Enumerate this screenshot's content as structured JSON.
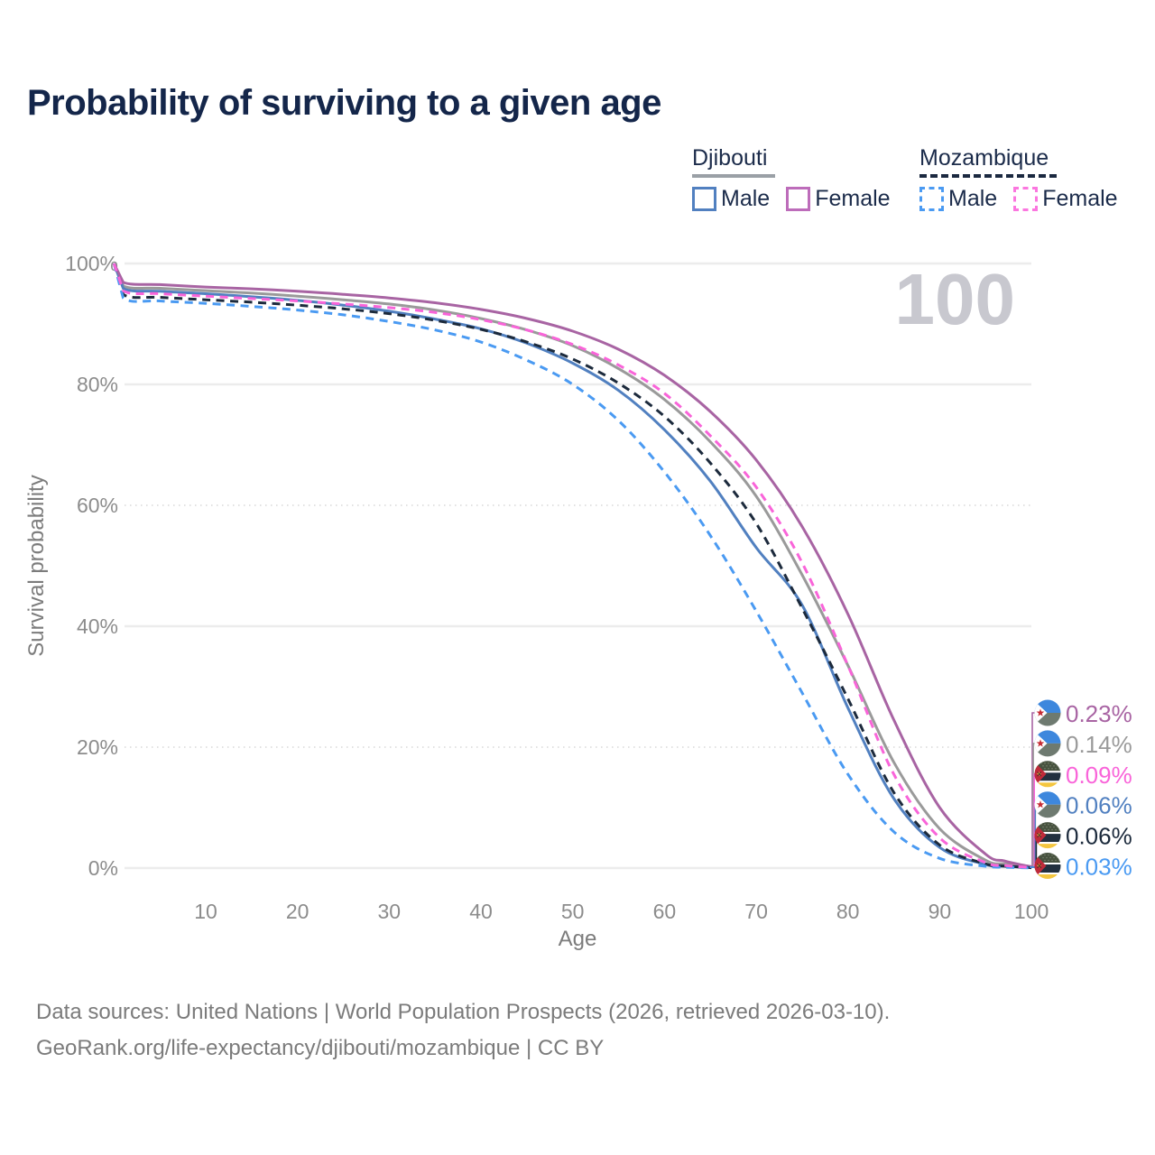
{
  "header": {
    "title": "Probability of surviving to a given age"
  },
  "watermark_age": "100",
  "legend": {
    "groups": [
      {
        "name": "Djibouti",
        "line_style": "solid",
        "line_color": "#9aa0a6",
        "items": [
          {
            "label": "Male",
            "color": "#5180c0",
            "dash": "solid"
          },
          {
            "label": "Female",
            "color": "#bd6cba",
            "dash": "solid"
          }
        ]
      },
      {
        "name": "Mozambique",
        "line_style": "dashed",
        "line_color": "#1b2940",
        "items": [
          {
            "label": "Male",
            "color": "#4a9af2",
            "dash": "dashed"
          },
          {
            "label": "Female",
            "color": "#fb76df",
            "dash": "dashed"
          }
        ]
      }
    ]
  },
  "chart_data": {
    "type": "line",
    "title": "Probability of surviving to a given age",
    "xlabel": "Age",
    "ylabel": "Survival probability",
    "xlim": [
      0,
      100
    ],
    "ylim": [
      0,
      100
    ],
    "grid": true,
    "legend_position": "top-right",
    "xticks": [
      10,
      20,
      30,
      40,
      50,
      60,
      70,
      80,
      90,
      100
    ],
    "yticks": [
      {
        "pct": 0,
        "label": "0%",
        "line": "solid"
      },
      {
        "pct": 20,
        "label": "20%",
        "line": "dotted"
      },
      {
        "pct": 40,
        "label": "40%",
        "line": "solid"
      },
      {
        "pct": 60,
        "label": "60%",
        "line": "dotted"
      },
      {
        "pct": 80,
        "label": "80%",
        "line": "solid"
      },
      {
        "pct": 100,
        "label": "100%",
        "line": "solid"
      }
    ],
    "ages": [
      0,
      1,
      5,
      10,
      15,
      20,
      25,
      30,
      35,
      40,
      45,
      50,
      55,
      60,
      65,
      70,
      75,
      80,
      85,
      90,
      95,
      97,
      99,
      100
    ],
    "series": [
      {
        "name": "Djibouti",
        "country": "Djibouti",
        "sex": "Both sexes",
        "color": "#9a9a9a",
        "dash": "solid",
        "end_value": "0.14%",
        "values": [
          100,
          96.3,
          95.9,
          95.5,
          95.1,
          94.6,
          94.0,
          93.3,
          92.3,
          90.9,
          89.0,
          86.4,
          82.6,
          77.5,
          70.5,
          61.5,
          48.5,
          33.5,
          17.5,
          6.5,
          1.3,
          0.7,
          0.3,
          0.14
        ]
      },
      {
        "name": "Djibouti Male",
        "country": "Djibouti",
        "sex": "Male",
        "color": "#5180c0",
        "dash": "solid",
        "end_value": "0.06%",
        "values": [
          100,
          95.9,
          95.4,
          95.0,
          94.5,
          93.9,
          93.1,
          92.1,
          90.8,
          89.2,
          86.8,
          83.5,
          79.0,
          72.5,
          64.0,
          53.0,
          43.5,
          26.5,
          11.5,
          3.4,
          0.6,
          0.3,
          0.15,
          0.06
        ]
      },
      {
        "name": "Djibouti Female",
        "country": "Djibouti",
        "sex": "Female",
        "color": "#a864a3",
        "dash": "solid",
        "end_value": "0.23%",
        "values": [
          100,
          96.9,
          96.5,
          96.1,
          95.8,
          95.4,
          94.9,
          94.3,
          93.5,
          92.4,
          90.9,
          88.8,
          85.8,
          81.5,
          75.5,
          67.5,
          56.5,
          42.0,
          24.5,
          10.0,
          2.3,
          1.2,
          0.5,
          0.23
        ]
      },
      {
        "name": "Mozambique",
        "country": "Mozambique",
        "sex": "Both sexes",
        "color": "#1c2a3c",
        "dash": "dashed",
        "end_value": "0.06%",
        "values": [
          100,
          94.9,
          94.4,
          94.0,
          93.6,
          93.1,
          92.5,
          91.7,
          90.6,
          89.1,
          87.0,
          84.2,
          80.2,
          74.7,
          67.0,
          57.0,
          43.0,
          28.0,
          12.5,
          3.8,
          0.7,
          0.35,
          0.15,
          0.06
        ]
      },
      {
        "name": "Mozambique Male",
        "country": "Mozambique",
        "sex": "Male",
        "color": "#4a9af2",
        "dash": "dashed",
        "end_value": "0.03%",
        "values": [
          100,
          94.3,
          93.8,
          93.4,
          92.9,
          92.3,
          91.5,
          90.4,
          89.0,
          87.0,
          84.0,
          80.0,
          74.0,
          65.5,
          55.0,
          42.5,
          29.0,
          15.5,
          6.0,
          1.6,
          0.3,
          0.15,
          0.06,
          0.03
        ]
      },
      {
        "name": "Mozambique Female",
        "country": "Mozambique",
        "sex": "Female",
        "color": "#f964d9",
        "dash": "dashed",
        "end_value": "0.09%",
        "values": [
          100,
          95.5,
          95.0,
          94.6,
          94.2,
          93.8,
          93.3,
          92.7,
          91.9,
          90.7,
          89.0,
          86.6,
          83.2,
          78.5,
          71.5,
          63.0,
          50.5,
          33.5,
          15.5,
          5.0,
          0.9,
          0.45,
          0.18,
          0.09
        ]
      }
    ],
    "end_labels": [
      {
        "series": "Djibouti Female",
        "value": "0.23%",
        "flag": "djibouti"
      },
      {
        "series": "Djibouti",
        "value": "0.14%",
        "flag": "djibouti"
      },
      {
        "series": "Mozambique Female",
        "value": "0.09%",
        "flag": "mozambique"
      },
      {
        "series": "Djibouti Male",
        "value": "0.06%",
        "flag": "djibouti"
      },
      {
        "series": "Mozambique",
        "value": "0.06%",
        "flag": "mozambique"
      },
      {
        "series": "Mozambique Male",
        "value": "0.03%",
        "flag": "mozambique"
      }
    ]
  },
  "footer": {
    "line1": "Data sources: United Nations | World Population Prospects (2026, retrieved 2026-03-10).",
    "line2": "GeoRank.org/life-expectancy/djibouti/mozambique | CC BY"
  }
}
